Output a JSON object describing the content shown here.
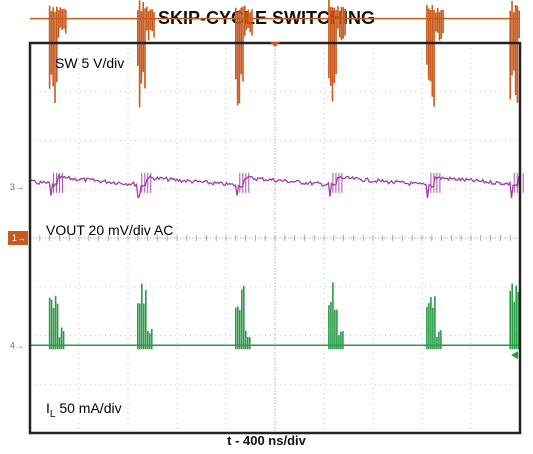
{
  "chart_data": {
    "type": "line",
    "title": "SKIP-CYCLE SWITCHING",
    "xlabel": "t - 400 ns/div",
    "grid": true,
    "x_divisions": 10,
    "y_divisions": 8,
    "series": [
      {
        "name": "SW 5 V/div",
        "marker": "1",
        "color": "#c85a1e",
        "level_div": 4.5,
        "burst_positions_div": [
          0.4,
          2.2,
          4.2,
          6.1,
          8.1,
          9.8
        ]
      },
      {
        "name": "VOUT 20 mV/div AC",
        "marker": "3",
        "color": "#a03ca8",
        "level_div": 1.05,
        "sawtooth_reset_positions_div": [
          0.4,
          2.2,
          4.2,
          6.1,
          8.1,
          9.8
        ]
      },
      {
        "name_main": "I",
        "name_sub": "L",
        "name_rest": " 50 mA/div",
        "marker": "4",
        "color": "#2a9a46",
        "level_div": -2.2,
        "burst_positions_div": [
          0.4,
          2.2,
          4.2,
          6.1,
          8.1,
          9.8
        ]
      }
    ]
  }
}
